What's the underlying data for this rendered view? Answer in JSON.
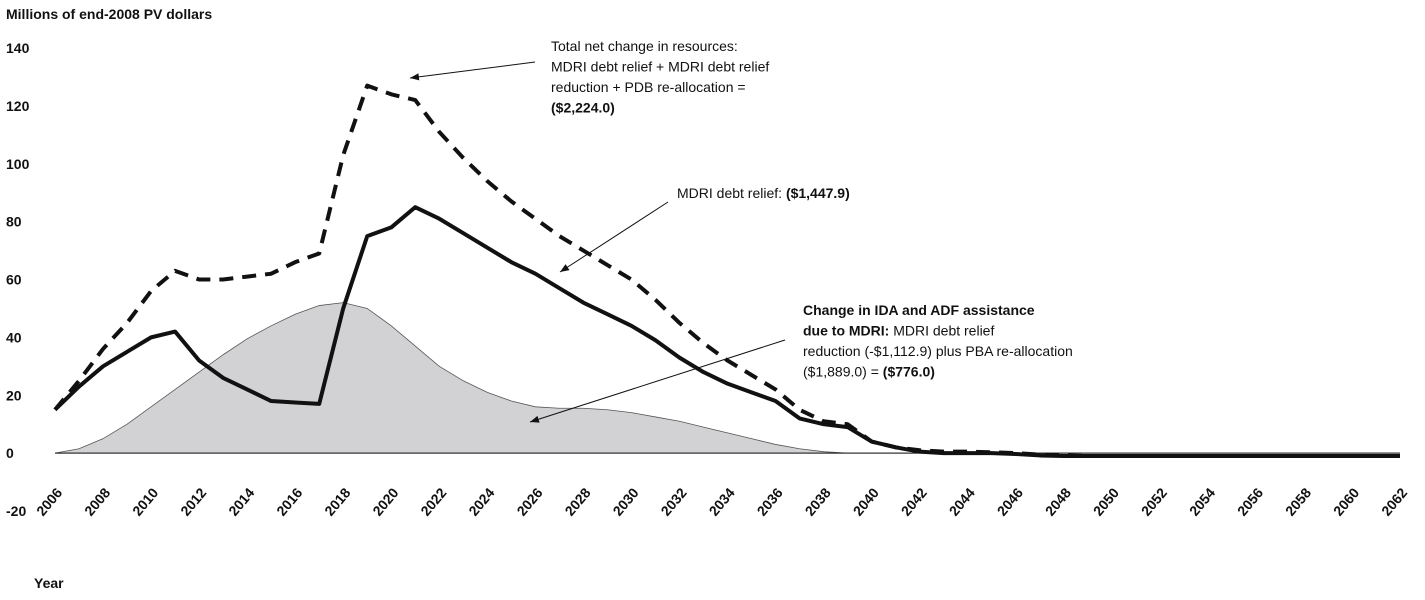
{
  "chart_data": {
    "type": "line",
    "y_axis_label": "Millions of end-2008 PV dollars",
    "x_axis_label": "Year",
    "x": [
      2006,
      2007,
      2008,
      2009,
      2010,
      2011,
      2012,
      2013,
      2014,
      2015,
      2016,
      2017,
      2018,
      2019,
      2020,
      2021,
      2022,
      2023,
      2024,
      2025,
      2026,
      2027,
      2028,
      2029,
      2030,
      2031,
      2032,
      2033,
      2034,
      2035,
      2036,
      2037,
      2038,
      2039,
      2040,
      2041,
      2042,
      2043,
      2044,
      2045,
      2046,
      2047,
      2048,
      2049,
      2050,
      2051,
      2052,
      2053,
      2054,
      2055,
      2056,
      2057,
      2058,
      2059,
      2060,
      2061,
      2062
    ],
    "xlim": [
      2006,
      2062
    ],
    "xticks": [
      2006,
      2008,
      2010,
      2012,
      2014,
      2016,
      2018,
      2020,
      2022,
      2024,
      2026,
      2028,
      2030,
      2032,
      2034,
      2036,
      2038,
      2040,
      2042,
      2044,
      2046,
      2048,
      2050,
      2052,
      2054,
      2056,
      2058,
      2060,
      2062
    ],
    "ylim": [
      -20,
      140
    ],
    "yticks": [
      -20,
      0,
      20,
      40,
      60,
      80,
      100,
      120,
      140
    ],
    "series": [
      {
        "style": "area",
        "color": "#d2d2d4",
        "values": [
          0,
          1.5,
          5,
          10,
          16,
          22,
          28,
          34,
          39.5,
          44,
          48,
          51,
          52,
          50,
          44,
          37,
          30,
          25,
          21,
          18,
          16,
          15.5,
          15.5,
          15,
          14,
          12.5,
          11,
          9,
          7,
          5,
          3,
          1.5,
          0.5,
          0,
          0,
          0,
          0,
          0,
          0,
          0,
          0,
          0,
          0,
          0,
          0,
          0,
          0,
          0,
          0,
          0,
          0,
          0,
          0,
          0,
          0,
          0,
          0
        ]
      },
      {
        "style": "dashed",
        "color": "#111111",
        "values": [
          15,
          25,
          36,
          45,
          56,
          63,
          60,
          60,
          61,
          62,
          66,
          69,
          103,
          127,
          124,
          122,
          111,
          102,
          94,
          87,
          81,
          75,
          70,
          65,
          60,
          53,
          45,
          38,
          32,
          27,
          22,
          15,
          11,
          10,
          4,
          2,
          1,
          0.5,
          0.5,
          0.3,
          0,
          -0.5,
          -0.8,
          -1,
          -1,
          -1,
          -1,
          -1,
          -1,
          -1,
          -1,
          -1,
          -1,
          -1,
          -1,
          -1,
          -1
        ]
      },
      {
        "style": "solid",
        "color": "#111111",
        "values": [
          15,
          23,
          30,
          35,
          40,
          42,
          32,
          26,
          22,
          18,
          17.5,
          17,
          50,
          75,
          78,
          85,
          81,
          76,
          71,
          66,
          62,
          57,
          52,
          48,
          44,
          39,
          33,
          28,
          24,
          21,
          18,
          12,
          10,
          9,
          4,
          2,
          0.5,
          0,
          0,
          0,
          -0.3,
          -0.8,
          -1,
          -1,
          -1,
          -1,
          -1,
          -1,
          -1,
          -1,
          -1,
          -1,
          -1,
          -1,
          -1,
          -1,
          -1
        ]
      }
    ],
    "annotations": [
      {
        "lines": [
          [
            {
              "text": "Total net change in resources:",
              "bold": false
            }
          ],
          [
            {
              "text": "MDRI debt relief + MDRI debt relief",
              "bold": false
            }
          ],
          [
            {
              "text": "reduction + PDB re-allocation =",
              "bold": false
            }
          ],
          [
            {
              "text": "($2,224.0)",
              "bold": true
            }
          ]
        ]
      },
      {
        "lines": [
          [
            {
              "text": "MDRI debt relief: ",
              "bold": false
            },
            {
              "text": "($1,447.9)",
              "bold": true
            }
          ]
        ]
      },
      {
        "lines": [
          [
            {
              "text": "Change in IDA and ADF assistance",
              "bold": true
            }
          ],
          [
            {
              "text": "due to MDRI:",
              "bold": true
            },
            {
              "text": " MDRI debt relief",
              "bold": false
            }
          ],
          [
            {
              "text": "reduction (-$1,112.9) plus PBA re-allocation",
              "bold": false
            }
          ],
          [
            {
              "text": "($1,889.0) = ",
              "bold": false
            },
            {
              "text": "($776.0)",
              "bold": true
            }
          ]
        ]
      }
    ]
  }
}
